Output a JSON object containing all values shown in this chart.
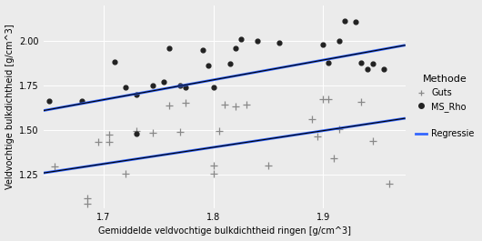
{
  "title": "",
  "xlabel": "Gemiddelde veldvochtige bulkdichtheid ringen [g/cm^3]",
  "ylabel": "Veldvochtige bulkdichtheid [g/cm^3]",
  "xlim": [
    1.645,
    1.975
  ],
  "ylim": [
    1.06,
    2.2
  ],
  "background_color": "#EBEBEB",
  "grid_color": "#FFFFFF",
  "guts_x": [
    1.655,
    1.685,
    1.685,
    1.695,
    1.705,
    1.705,
    1.72,
    1.73,
    1.745,
    1.76,
    1.77,
    1.775,
    1.8,
    1.8,
    1.805,
    1.81,
    1.82,
    1.83,
    1.85,
    1.89,
    1.895,
    1.9,
    1.905,
    1.91,
    1.915,
    1.935,
    1.945,
    1.96
  ],
  "guts_y": [
    1.295,
    1.115,
    1.085,
    1.435,
    1.475,
    1.43,
    1.255,
    1.495,
    1.485,
    1.635,
    1.49,
    1.65,
    1.3,
    1.255,
    1.495,
    1.64,
    1.63,
    1.64,
    1.3,
    1.56,
    1.465,
    1.67,
    1.67,
    1.34,
    1.505,
    1.655,
    1.44,
    1.2
  ],
  "msrho_x": [
    1.65,
    1.68,
    1.71,
    1.72,
    1.73,
    1.73,
    1.745,
    1.755,
    1.76,
    1.77,
    1.775,
    1.79,
    1.795,
    1.8,
    1.815,
    1.82,
    1.825,
    1.84,
    1.86,
    1.9,
    1.905,
    1.915,
    1.92,
    1.93,
    1.935,
    1.94,
    1.945,
    1.955
  ],
  "msrho_y": [
    1.66,
    1.66,
    1.88,
    1.74,
    1.7,
    1.48,
    1.75,
    1.77,
    1.96,
    1.75,
    1.74,
    1.95,
    1.86,
    1.74,
    1.87,
    1.96,
    2.01,
    2.0,
    1.99,
    1.98,
    1.875,
    2.0,
    2.11,
    2.105,
    1.875,
    1.84,
    1.87,
    1.84
  ],
  "guts_line_x": [
    1.645,
    1.975
  ],
  "guts_line_y": [
    1.258,
    1.565
  ],
  "msrho_line_x": [
    1.645,
    1.975
  ],
  "msrho_line_y": [
    1.608,
    1.975
  ],
  "guts_color": "#888888",
  "msrho_color": "#222222",
  "line_color_blue": "#3366FF",
  "line_color_black": "#000000",
  "legend_title": "Methode",
  "legend_guts": "Guts",
  "legend_msrho": "MS_Rho",
  "legend_regression": "Regressie",
  "xticks": [
    1.7,
    1.8,
    1.9
  ],
  "yticks": [
    1.25,
    1.5,
    1.75,
    2.0
  ],
  "fontsize": 7,
  "legend_fontsize": 7,
  "legend_title_fontsize": 8
}
